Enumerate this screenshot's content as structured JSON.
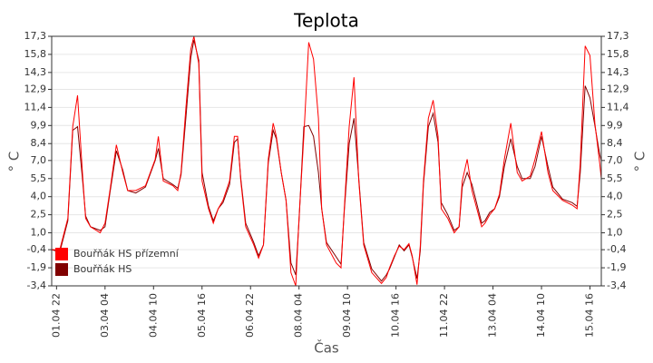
{
  "chart_data": {
    "type": "line",
    "title": "Teplota",
    "xlabel": "Čas",
    "ylabel": "° C",
    "x": [
      "01.04 19",
      "02.04 00",
      "02.04 05",
      "02.04 08",
      "02.04 11",
      "02.04 14",
      "02.04 16",
      "02.04 19",
      "03.04 01",
      "03.04 04",
      "03.04 07",
      "03.04 11",
      "03.04 15",
      "03.04 18",
      "03.04 23",
      "04.04 05",
      "04.04 11",
      "04.04 13",
      "04.04 16",
      "04.04 22",
      "05.04 01",
      "05.04 03",
      "05.04 06",
      "05.04 09",
      "05.04 11",
      "05.04 14",
      "05.04 16",
      "05.04 20",
      "05.04 23",
      "06.04 02",
      "06.04 05",
      "06.04 09",
      "06.04 12",
      "06.04 14",
      "06.04 16",
      "06.04 19",
      "07.04 00",
      "07.04 03",
      "07.04 06",
      "07.04 09",
      "07.04 12",
      "07.04 14",
      "07.04 17",
      "07.04 20",
      "07.04 23",
      "08.04 02",
      "08.04 04",
      "08.04 07",
      "08.04 10",
      "08.04 13",
      "08.04 16",
      "08.04 18",
      "08.04 21",
      "09.04 03",
      "09.04 06",
      "09.04 08",
      "09.04 11",
      "09.04 14",
      "09.04 17",
      "09.04 20",
      "10.04 01",
      "10.04 07",
      "10.04 10",
      "10.04 12",
      "10.04 15",
      "10.04 18",
      "10.04 21",
      "11.04 00",
      "11.04 02",
      "11.04 05",
      "11.04 07",
      "11.04 09",
      "11.04 12",
      "11.04 15",
      "11.04 18",
      "11.04 20",
      "12.04 00",
      "12.04 04",
      "12.04 07",
      "12.04 09",
      "12.04 12",
      "12.04 15",
      "12.04 21",
      "12.04 23",
      "13.04 02",
      "13.04 05",
      "13.04 08",
      "13.04 11",
      "13.04 15",
      "13.04 19",
      "13.04 22",
      "14.04 03",
      "14.04 06",
      "14.04 10",
      "14.04 14",
      "14.04 17",
      "14.04 23",
      "15.04 05",
      "15.04 08",
      "15.04 10",
      "15.04 13",
      "15.04 16",
      "15.04 19",
      "15.04 22",
      "15.04 23"
    ],
    "series": [
      {
        "name": "Bouřňák HS přízemní",
        "color": "#ff0000",
        "values": [
          -0.4,
          -0.4,
          2.2,
          9.8,
          12.4,
          6.0,
          2.2,
          1.5,
          1.0,
          1.8,
          4.5,
          8.3,
          6.0,
          4.5,
          4.5,
          4.9,
          7.1,
          9.0,
          5.3,
          4.9,
          4.5,
          6.0,
          11.3,
          16.2,
          17.3,
          15.0,
          5.3,
          3.0,
          1.8,
          3.0,
          3.7,
          5.3,
          9.0,
          9.0,
          5.3,
          1.5,
          0.0,
          -1.1,
          0.0,
          7.1,
          10.1,
          9.0,
          6.0,
          3.7,
          -2.3,
          -3.4,
          2.2,
          9.0,
          16.8,
          15.4,
          10.5,
          3.0,
          0.0,
          -1.5,
          -1.9,
          3.0,
          9.8,
          13.9,
          5.3,
          0.0,
          -2.3,
          -3.2,
          -2.7,
          -1.9,
          -0.9,
          -0.1,
          -0.4,
          0.1,
          -0.9,
          -3.3,
          -0.1,
          5.3,
          10.5,
          12.0,
          9.0,
          3.0,
          2.2,
          1.0,
          1.5,
          5.3,
          7.1,
          4.5,
          1.5,
          1.8,
          2.5,
          3.0,
          4.2,
          7.1,
          10.1,
          6.0,
          5.3,
          5.7,
          7.1,
          9.4,
          6.0,
          4.5,
          3.7,
          3.3,
          3.0,
          6.8,
          16.5,
          15.7,
          10.1,
          6.8,
          5.5
        ]
      },
      {
        "name": "Bouřňák HS",
        "color": "#800000",
        "values": [
          -0.4,
          -0.6,
          2.0,
          9.5,
          9.8,
          5.5,
          2.4,
          1.5,
          1.2,
          1.5,
          4.3,
          7.8,
          6.2,
          4.5,
          4.3,
          4.8,
          7.0,
          8.0,
          5.5,
          5.0,
          4.7,
          5.8,
          10.5,
          15.5,
          17.0,
          15.3,
          6.0,
          3.2,
          2.0,
          3.0,
          3.5,
          5.0,
          8.5,
          8.8,
          5.5,
          1.8,
          0.2,
          -0.9,
          0.0,
          6.8,
          9.5,
          8.8,
          6.0,
          3.7,
          -1.5,
          -2.5,
          2.0,
          9.8,
          9.9,
          9.0,
          6.0,
          3.0,
          0.2,
          -1.0,
          -1.6,
          2.8,
          8.4,
          10.5,
          5.5,
          0.2,
          -2.0,
          -3.0,
          -2.5,
          -2.0,
          -1.0,
          0.0,
          -0.5,
          0.0,
          -1.0,
          -2.8,
          -0.5,
          5.0,
          9.8,
          10.9,
          8.5,
          3.5,
          2.5,
          1.2,
          1.5,
          4.8,
          6.0,
          5.0,
          1.8,
          2.0,
          2.7,
          3.0,
          4.0,
          6.5,
          8.8,
          6.5,
          5.5,
          5.5,
          6.5,
          9.0,
          6.5,
          4.8,
          3.8,
          3.5,
          3.2,
          6.0,
          13.2,
          12.2,
          9.9,
          7.5,
          7.0
        ]
      }
    ],
    "xlim": [
      "01.04 19",
      "15.04 23"
    ],
    "xticks": [
      "01.04 22",
      "03.04 04",
      "04.04 10",
      "05.04 16",
      "06.04 22",
      "08.04 04",
      "09.04 10",
      "10.04 16",
      "11.04 22",
      "13.04 04",
      "14.04 10",
      "15.04 16"
    ],
    "ylim": [
      -3.4,
      17.3
    ],
    "yticks": [
      {
        "value": 17.3,
        "label": "17,3"
      },
      {
        "value": 15.8,
        "label": "15,8"
      },
      {
        "value": 14.3,
        "label": "14,3"
      },
      {
        "value": 12.9,
        "label": "12,9"
      },
      {
        "value": 11.4,
        "label": "11,4"
      },
      {
        "value": 9.9,
        "label": "9,9"
      },
      {
        "value": 8.4,
        "label": "8,4"
      },
      {
        "value": 7.0,
        "label": "7,0"
      },
      {
        "value": 5.5,
        "label": "5,5"
      },
      {
        "value": 4.0,
        "label": "4,0"
      },
      {
        "value": 2.5,
        "label": "2,5"
      },
      {
        "value": 1.0,
        "label": "1,0"
      },
      {
        "value": -0.4,
        "label": "-0,4"
      },
      {
        "value": -1.9,
        "label": "-1,9"
      },
      {
        "value": -3.4,
        "label": "-3,4"
      }
    ],
    "grid": true,
    "legend": "lower left"
  }
}
